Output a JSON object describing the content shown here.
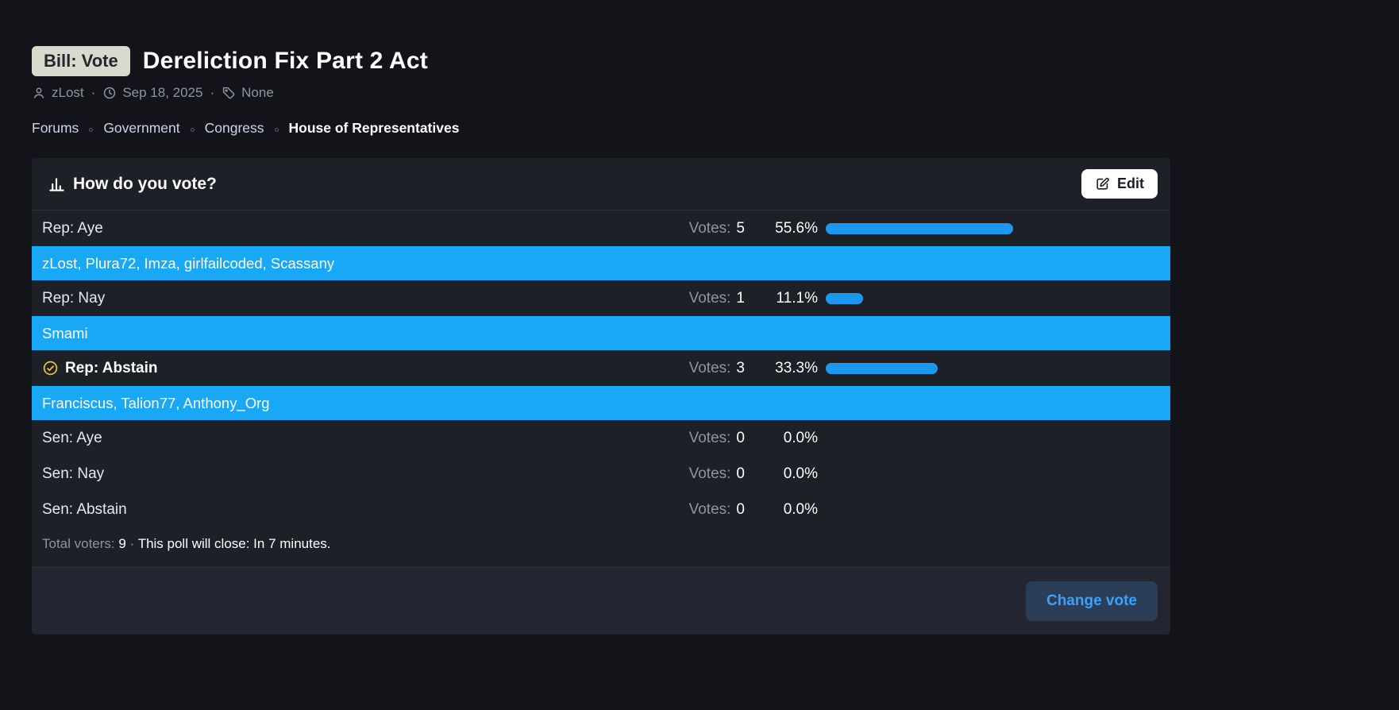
{
  "page": {
    "badge": "Bill: Vote",
    "title": "Dereliction Fix Part 2 Act",
    "meta": {
      "author": "zLost",
      "separator": "·",
      "date": "Sep 18, 2025",
      "tags": "None"
    },
    "breadcrumb": {
      "items": [
        "Forums",
        "Government",
        "Congress",
        "House of Representatives"
      ]
    }
  },
  "poll": {
    "question": "How do you vote?",
    "edit_label": "Edit",
    "votes_label": "Votes:",
    "options": [
      {
        "label": "Rep: Aye",
        "votes": "5",
        "percent": "55.6%",
        "pct": 55.6,
        "voters": "zLost, Plura72, Imza, girlfailcoded, Scassany",
        "selected": false
      },
      {
        "label": "Rep: Nay",
        "votes": "1",
        "percent": "11.1%",
        "pct": 11.1,
        "voters": "Smami",
        "selected": false
      },
      {
        "label": "Rep: Abstain",
        "votes": "3",
        "percent": "33.3%",
        "pct": 33.3,
        "voters": "Franciscus, Talion77, Anthony_Org",
        "selected": true
      },
      {
        "label": "Sen: Aye",
        "votes": "0",
        "percent": "0.0%",
        "pct": 0,
        "selected": false
      },
      {
        "label": "Sen: Nay",
        "votes": "0",
        "percent": "0.0%",
        "pct": 0,
        "selected": false
      },
      {
        "label": "Sen: Abstain",
        "votes": "0",
        "percent": "0.0%",
        "pct": 0,
        "selected": false
      }
    ],
    "footer": {
      "total_voters_label": "Total voters:",
      "total_voters": "9",
      "separator": "·",
      "close_text": "This poll will close: In 7 minutes."
    },
    "change_vote_label": "Change vote"
  },
  "colors": {
    "page_bg": "#131419",
    "card_bg": "#1e2028",
    "voters_row_blue": "#18a8f5",
    "bar_blue": "#1b98ef",
    "selected_check_yellow": "#e8c838",
    "badge_bg": "#d8dace",
    "change_vote_text": "#3ba2f7",
    "change_vote_bg": "#2c3e57"
  }
}
